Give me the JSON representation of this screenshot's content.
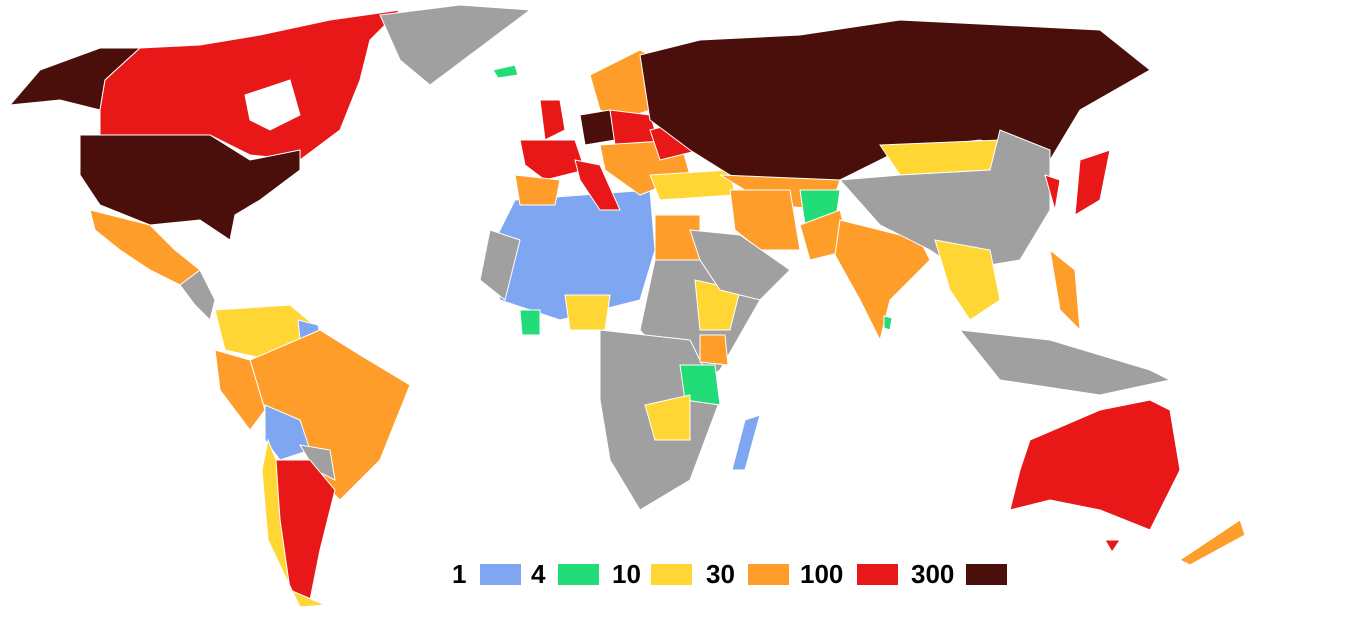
{
  "legend": {
    "labels": [
      "1",
      "4",
      "10",
      "30",
      "100",
      "300"
    ],
    "colors": [
      "#7fa6f0",
      "#22dd77",
      "#ffd633",
      "#ff9d2a",
      "#e81818",
      "#4a0f0a"
    ],
    "no_data_color": "#a0a0a0"
  }
}
